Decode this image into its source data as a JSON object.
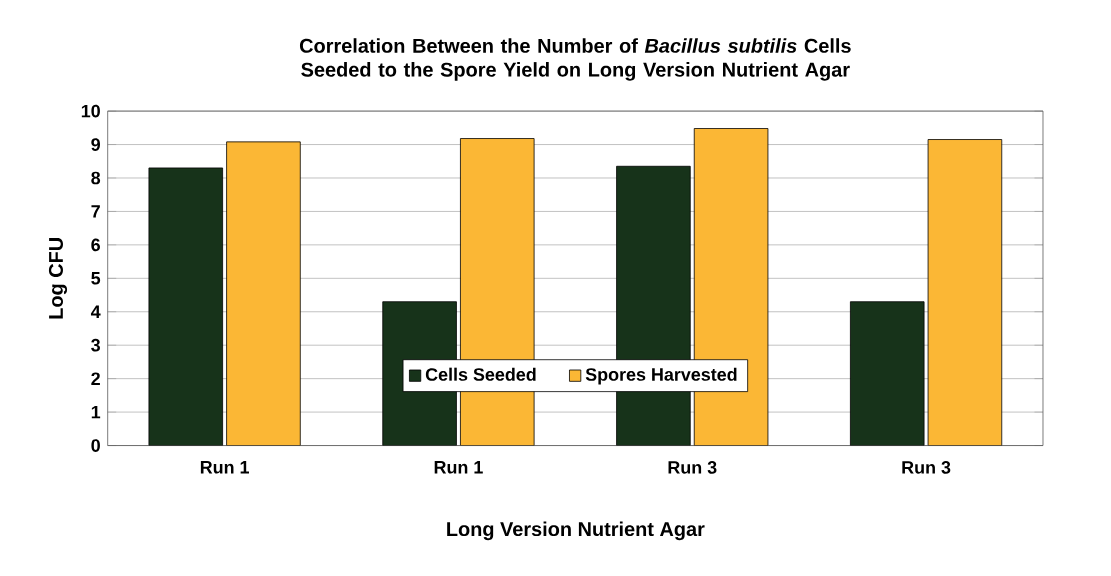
{
  "chart_data": {
    "type": "bar",
    "title": "Correlation Between the Number of *Bacillus subtilis* Cells Seeded to the Spore Yield on Long Version Nutrient Agar",
    "xlabel": "Long Version Nutrient Agar",
    "ylabel": "Log CFU",
    "categories": [
      "Run 1",
      "Run 1",
      "Run 3",
      "Run 3"
    ],
    "series": [
      {
        "name": "Cells Seeded",
        "color": "#17331a",
        "values": [
          8.3,
          4.3,
          8.35,
          4.3
        ]
      },
      {
        "name": "Spores Harvested",
        "color": "#fbb735",
        "values": [
          9.08,
          9.18,
          9.48,
          9.15
        ]
      }
    ],
    "ylim": [
      0,
      10
    ],
    "yticks": [
      0,
      1,
      2,
      3,
      4,
      5,
      6,
      7,
      8,
      9,
      10
    ],
    "grid": "y",
    "legend": "bottom"
  }
}
